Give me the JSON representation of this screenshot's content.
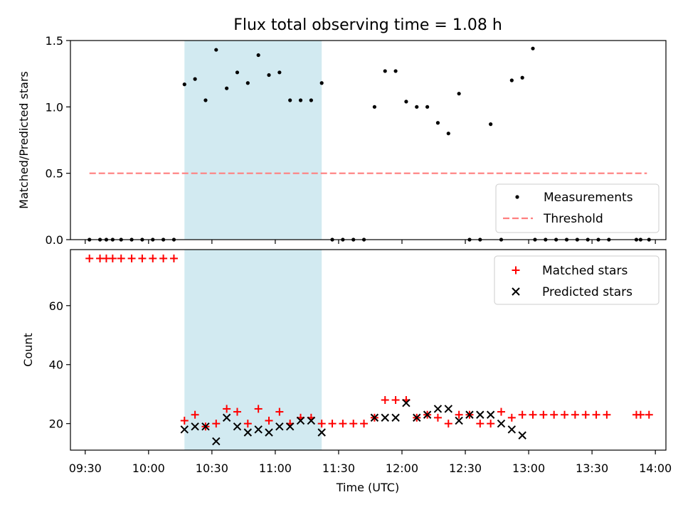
{
  "title": "Flux total observing time = 1.08 h",
  "chart_data": [
    {
      "type": "scatter",
      "ylabel": "Matched/Predicted stars",
      "ylim": [
        0,
        1.5
      ],
      "yticks": [
        "0.0",
        "0.5",
        "1.0",
        "1.5"
      ],
      "legend": {
        "placement": "lower-right",
        "entries": [
          "Measurements",
          "Threshold"
        ]
      },
      "threshold": {
        "name": "Threshold",
        "value": 0.5,
        "x_start": "09:32",
        "x_end": "13:56",
        "color": "#ff7f7f"
      },
      "series": [
        {
          "name": "Measurements",
          "color": "#000000",
          "points": [
            [
              "09:32",
              0
            ],
            [
              "09:37",
              0
            ],
            [
              "09:40",
              0
            ],
            [
              "09:43",
              0
            ],
            [
              "09:47",
              0
            ],
            [
              "09:52",
              0
            ],
            [
              "09:57",
              0
            ],
            [
              "10:02",
              0
            ],
            [
              "10:07",
              0
            ],
            [
              "10:12",
              0
            ],
            [
              "10:17",
              1.17
            ],
            [
              "10:22",
              1.21
            ],
            [
              "10:27",
              1.05
            ],
            [
              "10:32",
              1.43
            ],
            [
              "10:37",
              1.14
            ],
            [
              "10:42",
              1.26
            ],
            [
              "10:47",
              1.18
            ],
            [
              "10:52",
              1.39
            ],
            [
              "10:57",
              1.24
            ],
            [
              "11:02",
              1.26
            ],
            [
              "11:07",
              1.05
            ],
            [
              "11:12",
              1.05
            ],
            [
              "11:17",
              1.05
            ],
            [
              "11:22",
              1.18
            ],
            [
              "11:27",
              0
            ],
            [
              "11:32",
              0
            ],
            [
              "11:37",
              0
            ],
            [
              "11:42",
              0
            ],
            [
              "11:47",
              1.0
            ],
            [
              "11:52",
              1.27
            ],
            [
              "11:57",
              1.27
            ],
            [
              "12:02",
              1.04
            ],
            [
              "12:07",
              1.0
            ],
            [
              "12:12",
              1.0
            ],
            [
              "12:17",
              0.88
            ],
            [
              "12:22",
              0.8
            ],
            [
              "12:27",
              1.1
            ],
            [
              "12:32",
              0
            ],
            [
              "12:37",
              0
            ],
            [
              "12:42",
              0.87
            ],
            [
              "12:47",
              0
            ],
            [
              "12:52",
              1.2
            ],
            [
              "12:57",
              1.22
            ],
            [
              "13:02",
              1.44
            ],
            [
              "13:03",
              0
            ],
            [
              "13:08",
              0
            ],
            [
              "13:13",
              0
            ],
            [
              "13:18",
              0
            ],
            [
              "13:23",
              0
            ],
            [
              "13:28",
              0
            ],
            [
              "13:33",
              0
            ],
            [
              "13:38",
              0
            ],
            [
              "13:51",
              0
            ],
            [
              "13:53",
              0
            ],
            [
              "13:57",
              0
            ]
          ]
        }
      ]
    },
    {
      "type": "scatter",
      "ylabel": "Count",
      "xlabel": "Time (UTC)",
      "ylim": [
        11,
        79
      ],
      "yticks": [
        "20",
        "40",
        "60"
      ],
      "xlim": [
        "09:23",
        "14:05"
      ],
      "xticks": [
        "09:30",
        "10:00",
        "10:30",
        "11:00",
        "11:30",
        "12:00",
        "12:30",
        "13:00",
        "13:30",
        "14:00"
      ],
      "legend": {
        "placement": "top-right",
        "entries": [
          "Matched stars",
          "Predicted stars"
        ]
      },
      "series": [
        {
          "name": "Matched stars",
          "marker": "+",
          "color": "#ff0000",
          "points": [
            [
              "09:32",
              76
            ],
            [
              "09:37",
              76
            ],
            [
              "09:40",
              76
            ],
            [
              "09:43",
              76
            ],
            [
              "09:47",
              76
            ],
            [
              "09:52",
              76
            ],
            [
              "09:57",
              76
            ],
            [
              "10:02",
              76
            ],
            [
              "10:07",
              76
            ],
            [
              "10:12",
              76
            ],
            [
              "10:17",
              21
            ],
            [
              "10:22",
              23
            ],
            [
              "10:27",
              19
            ],
            [
              "10:32",
              20
            ],
            [
              "10:37",
              25
            ],
            [
              "10:42",
              24
            ],
            [
              "10:47",
              20
            ],
            [
              "10:52",
              25
            ],
            [
              "10:57",
              21
            ],
            [
              "11:02",
              24
            ],
            [
              "11:07",
              20
            ],
            [
              "11:12",
              22
            ],
            [
              "11:17",
              22
            ],
            [
              "11:22",
              20
            ],
            [
              "11:27",
              20
            ],
            [
              "11:32",
              20
            ],
            [
              "11:37",
              20
            ],
            [
              "11:42",
              20
            ],
            [
              "11:47",
              22
            ],
            [
              "11:52",
              28
            ],
            [
              "11:57",
              28
            ],
            [
              "12:02",
              28
            ],
            [
              "12:07",
              22
            ],
            [
              "12:12",
              23
            ],
            [
              "12:17",
              22
            ],
            [
              "12:22",
              20
            ],
            [
              "12:27",
              23
            ],
            [
              "12:32",
              23
            ],
            [
              "12:37",
              20
            ],
            [
              "12:42",
              20
            ],
            [
              "12:47",
              24
            ],
            [
              "12:52",
              22
            ],
            [
              "12:57",
              23
            ],
            [
              "13:02",
              23
            ],
            [
              "13:07",
              23
            ],
            [
              "13:12",
              23
            ],
            [
              "13:17",
              23
            ],
            [
              "13:22",
              23
            ],
            [
              "13:27",
              23
            ],
            [
              "13:32",
              23
            ],
            [
              "13:37",
              23
            ],
            [
              "13:51",
              23
            ],
            [
              "13:53",
              23
            ],
            [
              "13:57",
              23
            ]
          ]
        },
        {
          "name": "Predicted stars",
          "marker": "x",
          "color": "#000000",
          "points": [
            [
              "10:17",
              18
            ],
            [
              "10:22",
              19
            ],
            [
              "10:27",
              19
            ],
            [
              "10:32",
              14
            ],
            [
              "10:37",
              22
            ],
            [
              "10:42",
              19
            ],
            [
              "10:47",
              17
            ],
            [
              "10:52",
              18
            ],
            [
              "10:57",
              17
            ],
            [
              "11:02",
              19
            ],
            [
              "11:07",
              19
            ],
            [
              "11:12",
              21
            ],
            [
              "11:17",
              21
            ],
            [
              "11:22",
              17
            ],
            [
              "11:47",
              22
            ],
            [
              "11:52",
              22
            ],
            [
              "11:57",
              22
            ],
            [
              "12:02",
              27
            ],
            [
              "12:07",
              22
            ],
            [
              "12:12",
              23
            ],
            [
              "12:17",
              25
            ],
            [
              "12:22",
              25
            ],
            [
              "12:27",
              21
            ],
            [
              "12:32",
              23
            ],
            [
              "12:37",
              23
            ],
            [
              "12:42",
              23
            ],
            [
              "12:47",
              20
            ],
            [
              "12:52",
              18
            ],
            [
              "12:57",
              16
            ]
          ]
        }
      ]
    }
  ],
  "shaded_interval": {
    "start": "10:17",
    "end": "11:22",
    "color": "#add8e6"
  }
}
